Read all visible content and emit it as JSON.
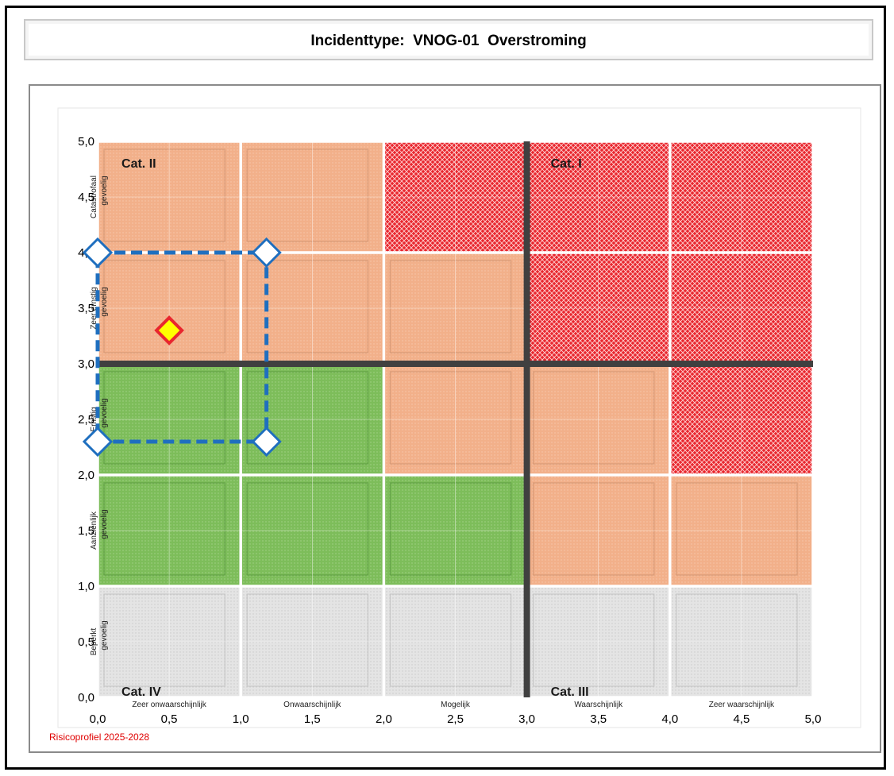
{
  "title": "Incidenttype:  VNOG-01  Overstroming",
  "source_note": "Risicoprofiel 2025-2028",
  "colors": {
    "red": "#e8262e",
    "orange": "#f2b08a",
    "green": "#7dbd5a",
    "gray": "#e4e4e4",
    "divider": "#404040",
    "dashed_line": "#1f6fbf",
    "marker_fill": "#ffff00",
    "marker_border": "#e8262e"
  },
  "chart_data": {
    "type": "risk-matrix",
    "xlim": [
      0,
      5
    ],
    "ylim": [
      0,
      5
    ],
    "x_ticks": [
      "0,0",
      "0,5",
      "1,0",
      "1,5",
      "2,0",
      "2,5",
      "3,0",
      "3,5",
      "4,0",
      "4,5",
      "5,0"
    ],
    "y_ticks": [
      "0,0",
      "0,5",
      "1,0",
      "1,5",
      "2,0",
      "2,5",
      "3,0",
      "3,5",
      "4,0",
      "4,5",
      "5,0"
    ],
    "x_categories": [
      "Zeer onwaarschijnlijk",
      "Onwaarschijnlijk",
      "Mogelijk",
      "Waarschijnlijk",
      "Zeer waarschijnlijk"
    ],
    "y_categories": [
      {
        "line1": "Beperkt",
        "line2": "gevoelig"
      },
      {
        "line1": "Aanzienlijk",
        "line2": "gevoelig"
      },
      {
        "line1": "Ernstig",
        "line2": "gevoelig"
      },
      {
        "line1": "Zeer ernstig",
        "line2": "gevoelig"
      },
      {
        "line1": "Catastrofaal",
        "line2": "gevoelig"
      }
    ],
    "cells": [
      [
        "gray",
        "gray",
        "gray",
        "gray",
        "gray"
      ],
      [
        "green",
        "green",
        "green",
        "orange",
        "orange"
      ],
      [
        "green",
        "green",
        "orange",
        "orange",
        "red"
      ],
      [
        "orange",
        "orange",
        "orange",
        "red",
        "red"
      ],
      [
        "orange",
        "orange",
        "red",
        "red",
        "red"
      ]
    ],
    "dividers": {
      "x": 3.0,
      "y": 3.0
    },
    "quadrant_labels": [
      {
        "text": "Cat. II",
        "x": 0.1,
        "y": 4.85
      },
      {
        "text": "Cat. I",
        "x": 3.1,
        "y": 4.85
      },
      {
        "text": "Cat. IV",
        "x": 0.1,
        "y": 0.1
      },
      {
        "text": "Cat. III",
        "x": 3.1,
        "y": 0.1
      }
    ],
    "uncertainty_box": {
      "x": [
        0.0,
        1.18
      ],
      "y": [
        2.3,
        4.0
      ]
    },
    "point": {
      "x": 0.5,
      "y": 3.3
    }
  }
}
